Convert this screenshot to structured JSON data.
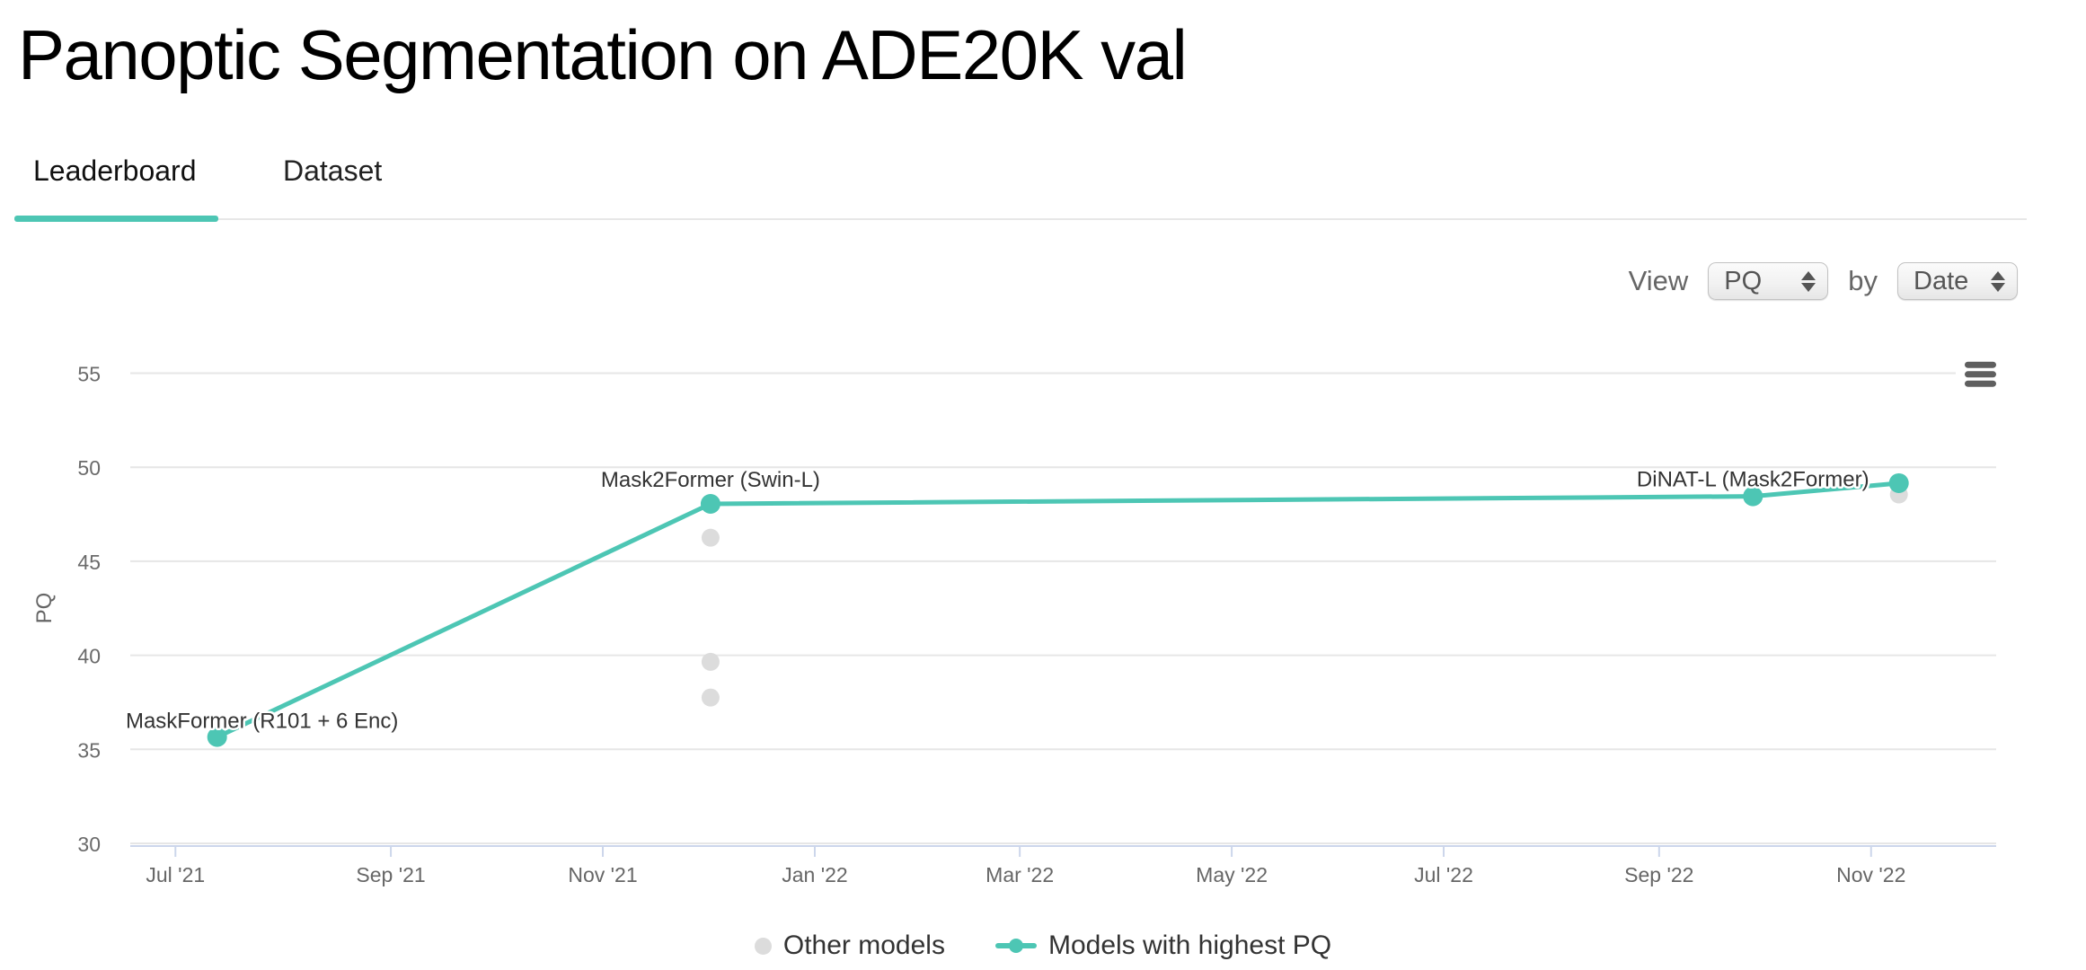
{
  "page": {
    "title": "Panoptic Segmentation on ADE20K val"
  },
  "tabs": [
    {
      "label": "Leaderboard",
      "active": true
    },
    {
      "label": "Dataset",
      "active": false
    }
  ],
  "controls": {
    "view_label": "View",
    "by_label": "by",
    "metric_select": {
      "value": "PQ"
    },
    "group_select": {
      "value": "Date"
    }
  },
  "colors": {
    "accent_teal": "#4dc6b4",
    "other_models_gray": "#dcdcdc",
    "gridline": "#e6e6e6",
    "axis_line": "#ccd6eb",
    "tick_text": "#666666",
    "label_text": "#333333",
    "tab_underline": "#4dc6b4",
    "menu_icon": "#5f5f5f"
  },
  "chart_data": {
    "type": "line",
    "title": "",
    "xlabel": "",
    "ylabel": "PQ",
    "ylim": [
      30,
      55
    ],
    "yticks": [
      30,
      35,
      40,
      45,
      50,
      55
    ],
    "xlim": [
      "2021-06-18",
      "2022-12-07"
    ],
    "xticks": [
      {
        "date": "2021-07-01",
        "label": "Jul '21"
      },
      {
        "date": "2021-09-01",
        "label": "Sep '21"
      },
      {
        "date": "2021-11-01",
        "label": "Nov '21"
      },
      {
        "date": "2022-01-01",
        "label": "Jan '22"
      },
      {
        "date": "2022-03-01",
        "label": "Mar '22"
      },
      {
        "date": "2022-05-01",
        "label": "May '22"
      },
      {
        "date": "2022-07-01",
        "label": "Jul '22"
      },
      {
        "date": "2022-09-01",
        "label": "Sep '22"
      },
      {
        "date": "2022-11-01",
        "label": "Nov '22"
      }
    ],
    "grid": "horizontal-only",
    "legend_position": "bottom-center",
    "series": [
      {
        "name": "Other models",
        "color": "#dcdcdc",
        "line": false,
        "points": [
          {
            "date": "2021-12-02",
            "pq": 46.3
          },
          {
            "date": "2021-12-02",
            "pq": 39.7
          },
          {
            "date": "2021-12-02",
            "pq": 37.8
          },
          {
            "date": "2022-11-09",
            "pq": 48.6
          }
        ]
      },
      {
        "name": "Models with highest PQ",
        "color": "#4dc6b4",
        "line": true,
        "points": [
          {
            "date": "2021-07-13",
            "pq": 35.7,
            "label": "MaskFormer (R101 + 6 Enc)",
            "label_dx": 50,
            "label_dy": 9
          },
          {
            "date": "2021-12-02",
            "pq": 48.1,
            "label": "Mask2Former (Swin-L)",
            "label_dx": 0,
            "label_dy": 0
          },
          {
            "date": "2022-09-28",
            "pq": 48.5,
            "label": "DiNAT-L (Mask2Former)",
            "label_dx": 0,
            "label_dy": 8
          },
          {
            "date": "2022-11-09",
            "pq": 49.2
          }
        ]
      }
    ],
    "legend": [
      {
        "label": "Other models",
        "marker": "dot",
        "color": "#dcdcdc"
      },
      {
        "label": "Models with highest PQ",
        "marker": "line-dot",
        "color": "#4dc6b4"
      }
    ]
  }
}
